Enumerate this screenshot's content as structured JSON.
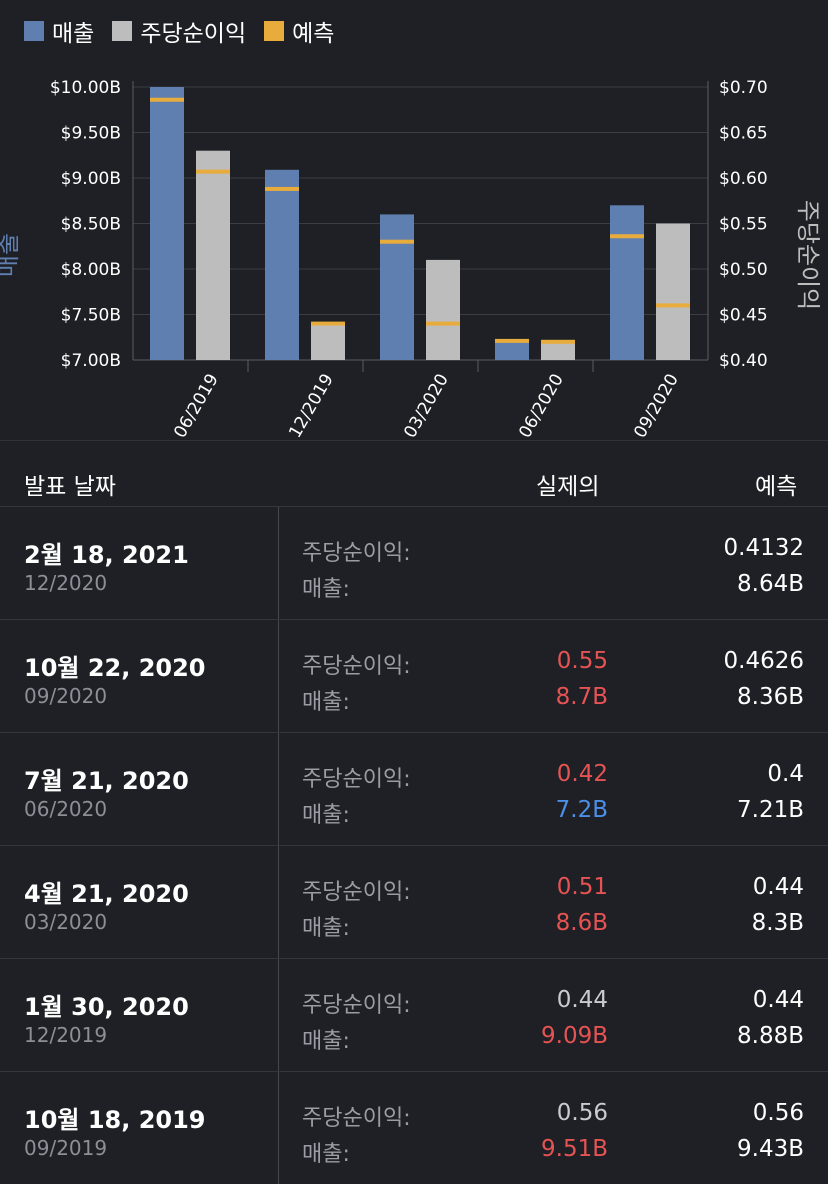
{
  "legend": [
    {
      "label": "매출",
      "color": "#5f7fb0"
    },
    {
      "label": "주당순이익",
      "color": "#bdbdbd"
    },
    {
      "label": "예측",
      "color": "#e8ac3c"
    }
  ],
  "chart_data": {
    "type": "bar",
    "categories": [
      "06/2019",
      "12/2019",
      "03/2020",
      "06/2020",
      "09/2020"
    ],
    "series": [
      {
        "name": "매출",
        "axis": "left",
        "color": "#5f7fb0",
        "values": [
          10.0,
          9.09,
          8.6,
          7.2,
          8.7
        ]
      },
      {
        "name": "주당순이익",
        "axis": "right",
        "color": "#bdbdbd",
        "values": [
          0.63,
          0.44,
          0.51,
          0.42,
          0.55
        ]
      }
    ],
    "estimates": {
      "name": "예측",
      "color": "#e8ac3c",
      "revenue": [
        9.86,
        8.88,
        8.3,
        7.21,
        8.36
      ],
      "eps": [
        0.607,
        0.44,
        0.44,
        0.42,
        0.46
      ]
    },
    "y_left": {
      "label": "매출",
      "min": 7.0,
      "max": 10.0,
      "ticks": [
        "$7.00B",
        "$7.50B",
        "$8.00B",
        "$8.50B",
        "$9.00B",
        "$9.50B",
        "$10.00B"
      ],
      "tick_values": [
        7.0,
        7.5,
        8.0,
        8.5,
        9.0,
        9.5,
        10.0
      ]
    },
    "y_right": {
      "label": "주당순이익",
      "min": 0.4,
      "max": 0.7,
      "ticks": [
        "$0.40",
        "$0.45",
        "$0.50",
        "$0.55",
        "$0.60",
        "$0.65",
        "$0.70"
      ],
      "tick_values": [
        0.4,
        0.45,
        0.5,
        0.55,
        0.6,
        0.65,
        0.7
      ]
    },
    "grid": true,
    "legend_position": "top-left"
  },
  "table": {
    "headers": {
      "date": "발표 날짜",
      "actual": "실제의",
      "estimate": "예측"
    },
    "eps_label": "주당순이익:",
    "revenue_label": "매출:",
    "rows": [
      {
        "date": "2월 18, 2021",
        "period": "12/2020",
        "eps_actual": "",
        "rev_actual": "",
        "eps_est": "0.4132",
        "rev_est": "8.64B",
        "eps_color": "white",
        "rev_color": "white"
      },
      {
        "date": "10월 22, 2020",
        "period": "09/2020",
        "eps_actual": "0.55",
        "rev_actual": "8.7B",
        "eps_est": "0.4626",
        "rev_est": "8.36B",
        "eps_color": "red",
        "rev_color": "red"
      },
      {
        "date": "7월 21, 2020",
        "period": "06/2020",
        "eps_actual": "0.42",
        "rev_actual": "7.2B",
        "eps_est": "0.4",
        "rev_est": "7.21B",
        "eps_color": "red",
        "rev_color": "blue"
      },
      {
        "date": "4월 21, 2020",
        "period": "03/2020",
        "eps_actual": "0.51",
        "rev_actual": "8.6B",
        "eps_est": "0.44",
        "rev_est": "8.3B",
        "eps_color": "red",
        "rev_color": "red"
      },
      {
        "date": "1월 30, 2020",
        "period": "12/2019",
        "eps_actual": "0.44",
        "rev_actual": "9.09B",
        "eps_est": "0.44",
        "rev_est": "8.88B",
        "eps_color": "grey",
        "rev_color": "red"
      },
      {
        "date": "10월 18, 2019",
        "period": "09/2019",
        "eps_actual": "0.56",
        "rev_actual": "9.51B",
        "eps_est": "0.56",
        "rev_est": "9.43B",
        "eps_color": "grey",
        "rev_color": "red"
      }
    ]
  }
}
